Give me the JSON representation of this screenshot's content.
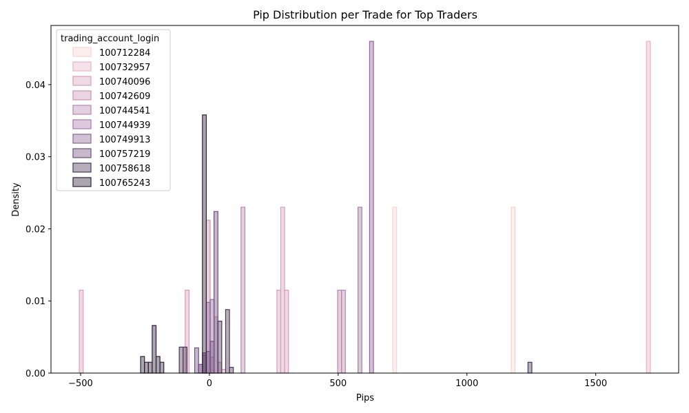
{
  "chart_data": {
    "type": "histogram",
    "title": "Pip Distribution per Trade for Top Traders",
    "xlabel": "Pips",
    "ylabel": "Density",
    "xlim": [
      -615,
      1822
    ],
    "ylim": [
      0,
      0.0482
    ],
    "xticks": [
      -500,
      0,
      500,
      1000,
      1500
    ],
    "xtick_labels": [
      "−500",
      "0",
      "500",
      "1000",
      "1500"
    ],
    "yticks": [
      0,
      0.01,
      0.02,
      0.03,
      0.04
    ],
    "ytick_labels": [
      "0.00",
      "0.01",
      "0.02",
      "0.03",
      "0.04"
    ],
    "grid": false,
    "legend": {
      "title": "trading_account_login",
      "placement": "top-left"
    },
    "bin_width": 15,
    "series": [
      {
        "name": "100712284",
        "color": "#f5d4d0",
        "bars": [
          [
            712,
            0.023
          ],
          [
            1172,
            0.023
          ]
        ]
      },
      {
        "name": "100732957",
        "color": "#e6b3c4",
        "bars": [
          [
            1697,
            0.046
          ]
        ]
      },
      {
        "name": "100740096",
        "color": "#d79fbb",
        "bars": [
          [
            -505,
            0.0115
          ],
          [
            -94,
            0.0115
          ],
          [
            262,
            0.0115
          ],
          [
            277,
            0.023
          ],
          [
            292,
            0.0115
          ]
        ]
      },
      {
        "name": "100742609",
        "color": "#c894b5",
        "bars": [
          [
            -12,
            0.0212
          ],
          [
            3,
            0.0022
          ],
          [
            18,
            0.0078
          ],
          [
            33,
            0.0015
          ],
          [
            48,
            0.0005
          ]
        ]
      },
      {
        "name": "100744541",
        "color": "#b886af",
        "bars": [
          [
            123,
            0.023
          ],
          [
            498,
            0.0115
          ],
          [
            513,
            0.0115
          ]
        ]
      },
      {
        "name": "100744939",
        "color": "#a87aa8",
        "bars": [
          [
            577,
            0.023
          ],
          [
            -27,
            0.0025
          ],
          [
            -42,
            0.0012
          ]
        ]
      },
      {
        "name": "100749913",
        "color": "#8c6596",
        "bars": [
          [
            622,
            0.046
          ],
          [
            -12,
            0.0098
          ],
          [
            3,
            0.0102
          ]
        ]
      },
      {
        "name": "100757219",
        "color": "#6e4f7d",
        "bars": [
          [
            -57,
            0.0035
          ],
          [
            -42,
            0.0012
          ],
          [
            -27,
            0.0028
          ],
          [
            -12,
            0.003
          ],
          [
            3,
            0.0044
          ],
          [
            18,
            0.0224
          ]
        ]
      },
      {
        "name": "100758618",
        "color": "#4a3557",
        "bars": [
          [
            -117,
            0.0036
          ],
          [
            -102,
            0.0036
          ],
          [
            33,
            0.0072
          ],
          [
            63,
            0.0088
          ],
          [
            78,
            0.0008
          ],
          [
            1237,
            0.0015
          ]
        ]
      },
      {
        "name": "100765243",
        "color": "#2e2136",
        "bars": [
          [
            -267,
            0.0023
          ],
          [
            -252,
            0.0015
          ],
          [
            -237,
            0.0015
          ],
          [
            -222,
            0.0066
          ],
          [
            -207,
            0.0023
          ],
          [
            -192,
            0.0015
          ],
          [
            -27,
            0.0358
          ]
        ]
      }
    ]
  }
}
